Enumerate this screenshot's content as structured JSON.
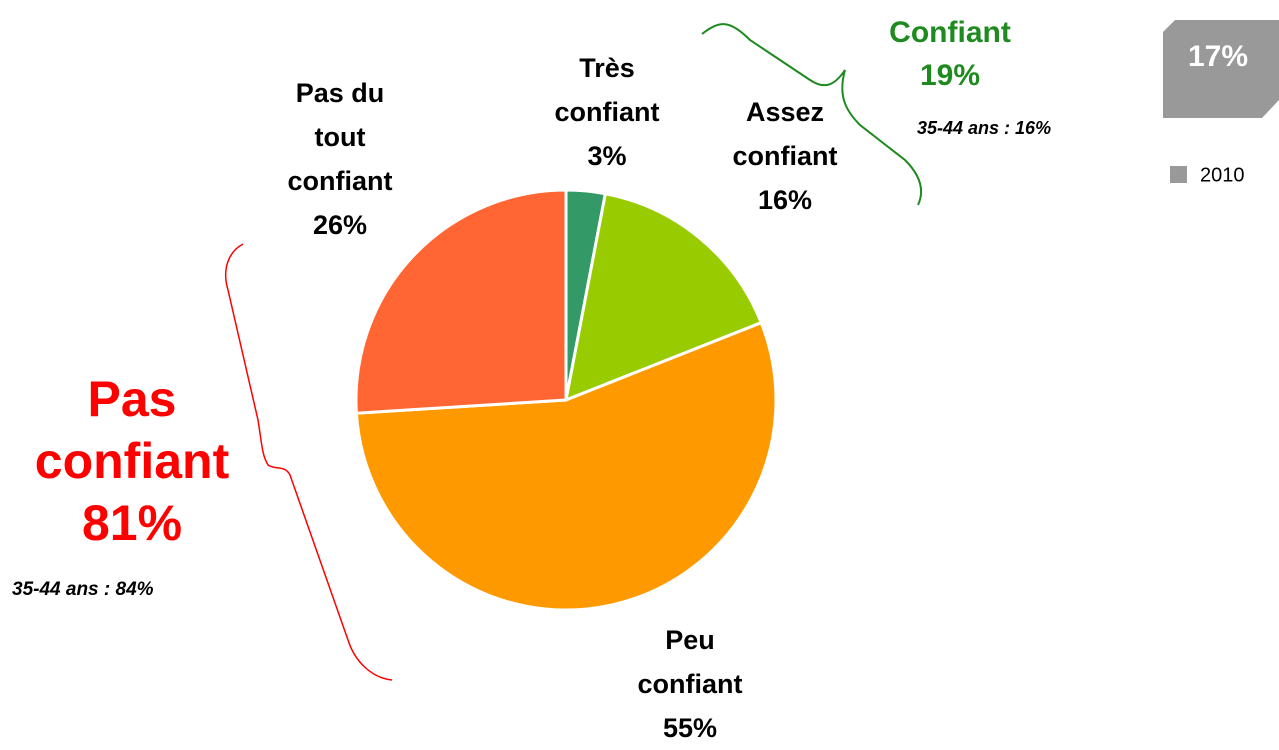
{
  "chart_data": {
    "type": "pie",
    "categories": [
      "Très confiant",
      "Assez confiant",
      "Peu confiant",
      "Pas du tout confiant"
    ],
    "values": [
      3,
      16,
      55,
      26
    ],
    "value_labels": [
      "3%",
      "16%",
      "55%",
      "26%"
    ],
    "colors": [
      "#339966",
      "#99cc00",
      "#ff9900",
      "#ff6633"
    ],
    "annotations": [
      {
        "label": "Confiant",
        "value_label": "19%",
        "note": "35-44 ans : 16%",
        "color": "#1f8a1f"
      },
      {
        "label": "Pas confiant",
        "value_label": "81%",
        "note": "35-44 ans : 84%",
        "color": "#ff0000"
      }
    ],
    "comparison": {
      "value_label": "17%",
      "legend": "2010",
      "color": "#999999"
    }
  }
}
